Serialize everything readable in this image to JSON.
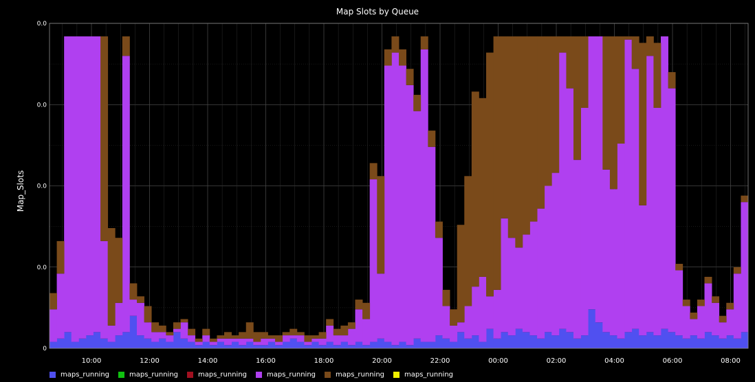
{
  "chart_data": {
    "type": "area",
    "title": "Map Slots by Queue",
    "ylabel": "Map_Slots",
    "xlabel": "",
    "x_ticks": [
      "10:00",
      "12:00",
      "14:00",
      "16:00",
      "18:00",
      "20:00",
      "22:00",
      "00:00",
      "02:00",
      "04:00",
      "06:00",
      "08:00"
    ],
    "y_ticks": [
      "0",
      "0.0",
      "0.0",
      "0.0",
      "0.0"
    ],
    "xlim": [
      "08:30",
      "08:45"
    ],
    "grid": true,
    "legend_position": "bottom-left",
    "series": [
      {
        "name": "maps_running",
        "color": "#5050f0",
        "values": [
          0.02,
          0.03,
          0.05,
          0.02,
          0.03,
          0.04,
          0.05,
          0.03,
          0.02,
          0.04,
          0.05,
          0.1,
          0.04,
          0.03,
          0.02,
          0.03,
          0.02,
          0.05,
          0.03,
          0.02,
          0.01,
          0.02,
          0.01,
          0.02,
          0.01,
          0.02,
          0.01,
          0.02,
          0.01,
          0.01,
          0.02,
          0.01,
          0.02,
          0.03,
          0.02,
          0.01,
          0.02,
          0.01,
          0.02,
          0.01,
          0.02,
          0.01,
          0.02,
          0.01,
          0.02,
          0.03,
          0.02,
          0.01,
          0.02,
          0.01,
          0.03,
          0.02,
          0.02,
          0.04,
          0.03,
          0.02,
          0.05,
          0.03,
          0.04,
          0.02,
          0.06,
          0.03,
          0.05,
          0.04,
          0.06,
          0.05,
          0.04,
          0.03,
          0.05,
          0.04,
          0.06,
          0.05,
          0.03,
          0.04,
          0.12,
          0.08,
          0.05,
          0.04,
          0.03,
          0.05,
          0.06,
          0.04,
          0.05,
          0.04,
          0.06,
          0.05,
          0.04,
          0.03,
          0.04,
          0.03,
          0.05,
          0.04,
          0.03,
          0.04,
          0.03,
          0.05
        ]
      },
      {
        "name": "maps_running",
        "color": "#10c010",
        "values": [
          0,
          0,
          0,
          0,
          0,
          0,
          0,
          0,
          0,
          0,
          0,
          0,
          0,
          0,
          0,
          0,
          0,
          0,
          0,
          0,
          0,
          0,
          0,
          0,
          0,
          0,
          0,
          0,
          0,
          0,
          0,
          0,
          0,
          0,
          0,
          0,
          0,
          0,
          0,
          0,
          0,
          0,
          0,
          0,
          0,
          0,
          0,
          0,
          0,
          0,
          0,
          0,
          0,
          0,
          0,
          0,
          0,
          0,
          0,
          0,
          0,
          0,
          0,
          0,
          0,
          0,
          0,
          0,
          0,
          0,
          0,
          0,
          0,
          0,
          0,
          0,
          0,
          0,
          0,
          0,
          0,
          0,
          0,
          0,
          0,
          0,
          0,
          0,
          0,
          0,
          0,
          0,
          0,
          0,
          0,
          0
        ]
      },
      {
        "name": "maps_running",
        "color": "#a01020",
        "values": [
          0,
          0,
          0,
          0,
          0,
          0,
          0,
          0,
          0,
          0,
          0,
          0,
          0,
          0,
          0,
          0,
          0,
          0,
          0,
          0,
          0,
          0,
          0,
          0,
          0,
          0,
          0,
          0,
          0,
          0,
          0,
          0,
          0,
          0,
          0,
          0,
          0,
          0,
          0,
          0,
          0,
          0,
          0,
          0,
          0,
          0,
          0,
          0,
          0,
          0,
          0,
          0,
          0,
          0,
          0,
          0,
          0,
          0,
          0,
          0,
          0,
          0,
          0,
          0,
          0,
          0,
          0,
          0,
          0,
          0,
          0,
          0,
          0,
          0,
          0,
          0,
          0,
          0,
          0,
          0,
          0,
          0,
          0,
          0,
          0,
          0,
          0,
          0,
          0,
          0,
          0,
          0,
          0,
          0,
          0,
          0
        ]
      },
      {
        "name": "maps_running",
        "color": "#b040f0",
        "values": [
          0.1,
          0.2,
          0.95,
          0.95,
          0.95,
          0.95,
          0.95,
          0.3,
          0.05,
          0.1,
          0.85,
          0.05,
          0.1,
          0.05,
          0.03,
          0.02,
          0.02,
          0.01,
          0.05,
          0.02,
          0.01,
          0.02,
          0.01,
          0.01,
          0.02,
          0.01,
          0.02,
          0.01,
          0.01,
          0.02,
          0.01,
          0.01,
          0.02,
          0.01,
          0.02,
          0.01,
          0.01,
          0.02,
          0.05,
          0.03,
          0.02,
          0.05,
          0.1,
          0.08,
          0.5,
          0.2,
          0.85,
          0.9,
          0.85,
          0.8,
          0.7,
          0.9,
          0.6,
          0.3,
          0.1,
          0.05,
          0.03,
          0.1,
          0.15,
          0.2,
          0.1,
          0.15,
          0.35,
          0.3,
          0.25,
          0.3,
          0.35,
          0.4,
          0.45,
          0.5,
          0.85,
          0.75,
          0.55,
          0.7,
          0.9,
          0.95,
          0.5,
          0.45,
          0.6,
          0.9,
          0.8,
          0.4,
          0.85,
          0.7,
          0.9,
          0.75,
          0.2,
          0.1,
          0.05,
          0.1,
          0.15,
          0.1,
          0.05,
          0.08,
          0.2,
          0.4
        ]
      },
      {
        "name": "maps_running",
        "color": "#7a4a1a",
        "values": [
          0.05,
          0.1,
          0.02,
          0.02,
          0.02,
          0.02,
          0.02,
          0.7,
          0.3,
          0.2,
          0.1,
          0.05,
          0.02,
          0.05,
          0.03,
          0.02,
          0.01,
          0.02,
          0.01,
          0.02,
          0.01,
          0.02,
          0.01,
          0.01,
          0.02,
          0.01,
          0.02,
          0.05,
          0.03,
          0.02,
          0.01,
          0.02,
          0.01,
          0.02,
          0.01,
          0.02,
          0.01,
          0.02,
          0.02,
          0.02,
          0.03,
          0.02,
          0.03,
          0.05,
          0.05,
          0.3,
          0.05,
          0.05,
          0.05,
          0.05,
          0.05,
          0.05,
          0.05,
          0.05,
          0.05,
          0.05,
          0.3,
          0.4,
          0.6,
          0.55,
          0.75,
          0.8,
          0.6,
          0.65,
          0.7,
          0.65,
          0.6,
          0.55,
          0.5,
          0.45,
          0.1,
          0.2,
          0.4,
          0.25,
          0.05,
          0.02,
          0.45,
          0.5,
          0.35,
          0.05,
          0.15,
          0.5,
          0.1,
          0.2,
          0.05,
          0.05,
          0.02,
          0.02,
          0.02,
          0.02,
          0.02,
          0.02,
          0.02,
          0.02,
          0.02,
          0.02
        ]
      },
      {
        "name": "maps_running",
        "color": "#f0f000",
        "values": [
          0,
          0,
          0,
          0,
          0,
          0,
          0,
          0,
          0,
          0,
          0,
          0,
          0,
          0,
          0,
          0,
          0,
          0,
          0,
          0,
          0,
          0,
          0,
          0,
          0,
          0,
          0,
          0,
          0,
          0,
          0,
          0,
          0,
          0,
          0,
          0,
          0,
          0,
          0,
          0,
          0,
          0,
          0,
          0,
          0,
          0,
          0,
          0,
          0,
          0,
          0,
          0,
          0,
          0,
          0,
          0,
          0,
          0,
          0,
          0,
          0,
          0,
          0,
          0,
          0,
          0,
          0,
          0,
          0,
          0,
          0,
          0,
          0,
          0,
          0,
          0,
          0,
          0,
          0,
          0,
          0,
          0,
          0,
          0,
          0,
          0,
          0,
          0,
          0,
          0,
          0,
          0,
          0,
          0,
          0,
          0
        ]
      }
    ],
    "ylim": [
      0,
      1
    ]
  }
}
